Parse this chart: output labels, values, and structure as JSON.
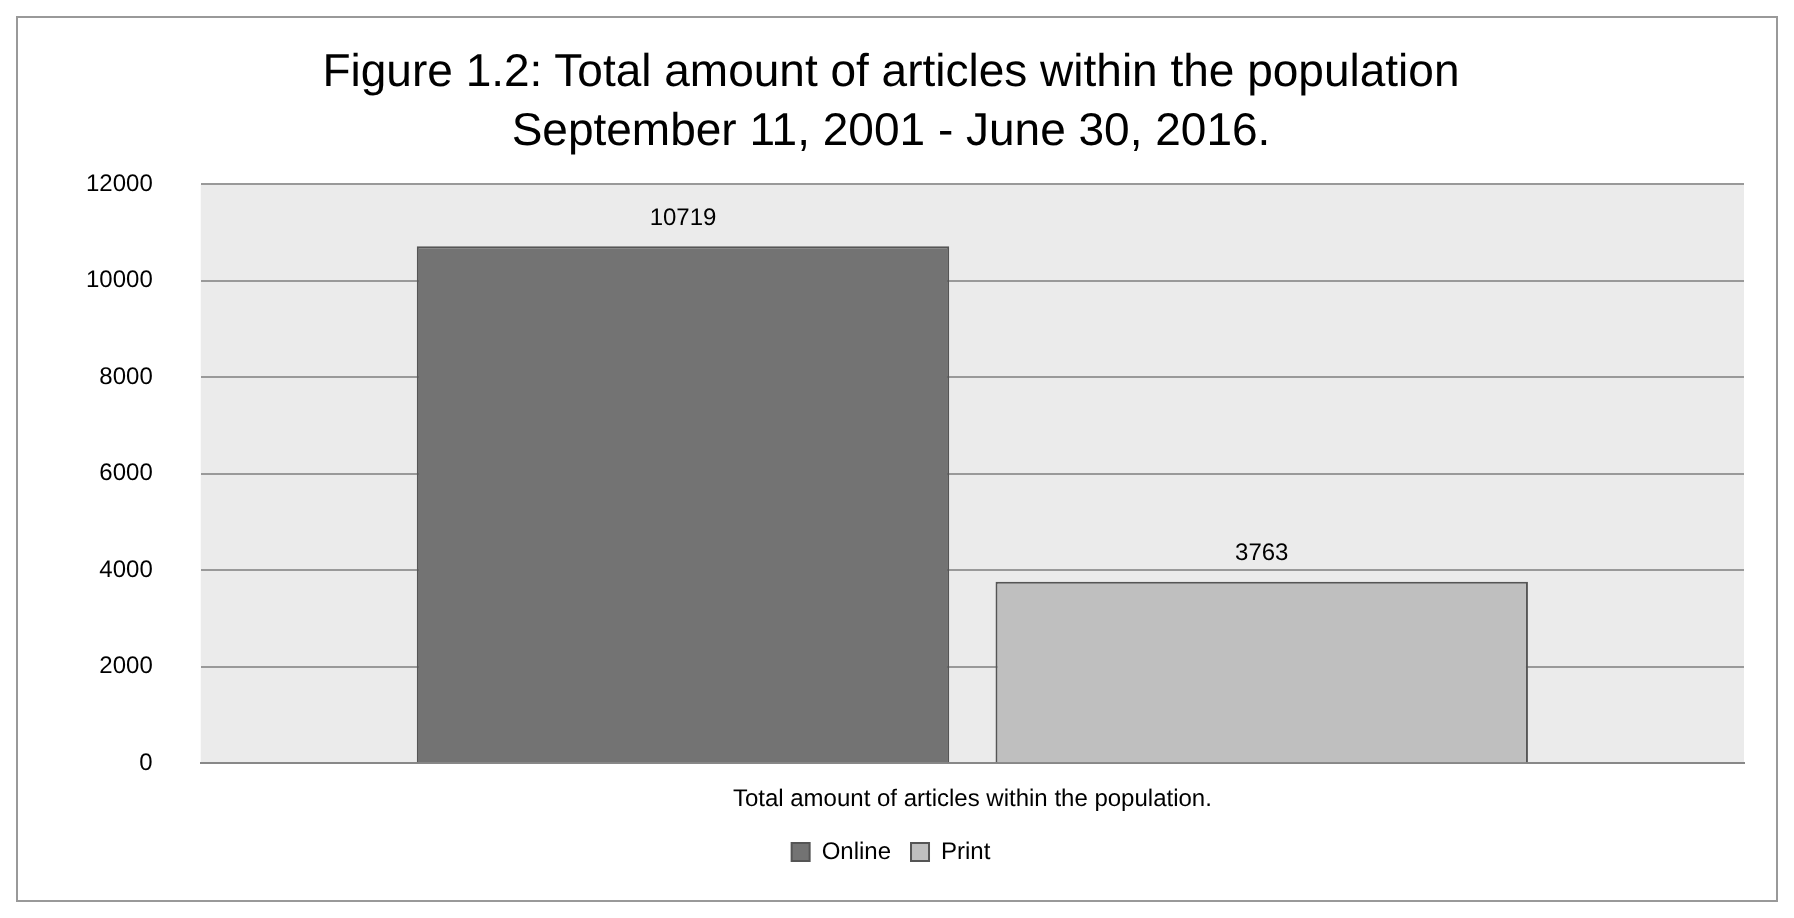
{
  "chart_data": {
    "type": "bar",
    "title": "Figure 1.2: Total amount of articles within the population",
    "subtitle": "September 11, 2001 - June 30, 2016.",
    "categories": [
      "Total amount of articles within the population."
    ],
    "series": [
      {
        "name": "Online",
        "color": "#737373",
        "values": [
          10719
        ]
      },
      {
        "name": "Print",
        "color": "#bfbfbf",
        "values": [
          3763
        ]
      }
    ],
    "ylim": [
      0,
      12000
    ],
    "yticks": [
      0,
      2000,
      4000,
      6000,
      8000,
      10000,
      12000
    ],
    "grid": "y",
    "legend": "bottom",
    "data_labels": true
  }
}
